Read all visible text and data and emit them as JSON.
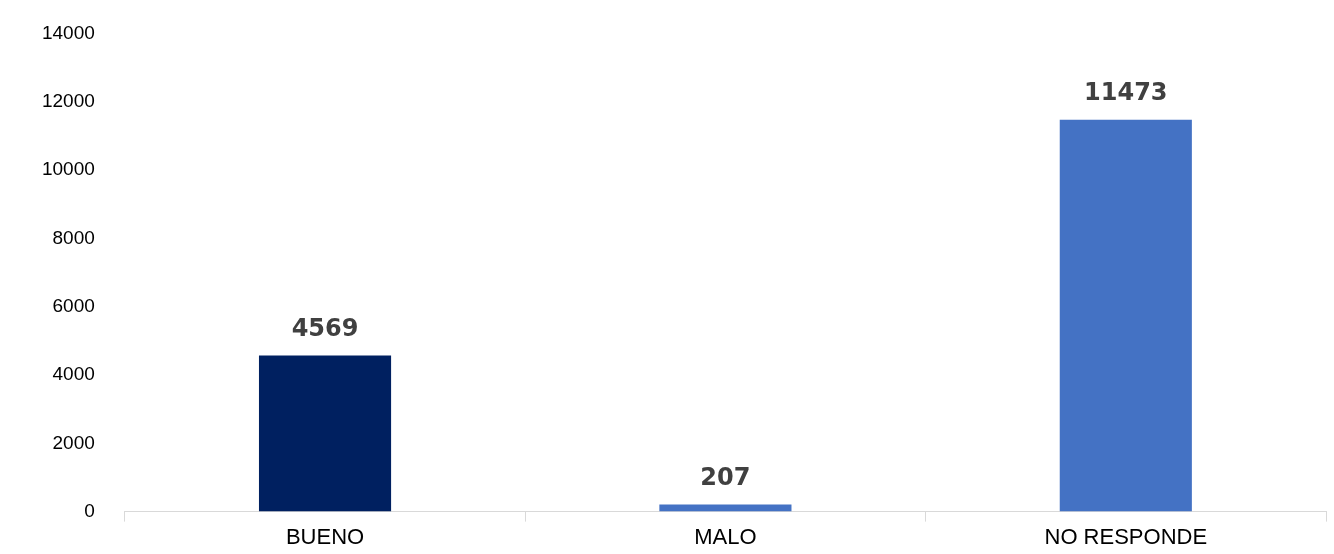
{
  "chart_data": {
    "type": "bar",
    "categories": [
      "BUENO",
      "MALO",
      "NO RESPONDE"
    ],
    "values": [
      4569,
      207,
      11473
    ],
    "colors": [
      "#002060",
      "#4472c4",
      "#4472c4"
    ],
    "ylim": [
      0,
      14000
    ],
    "yticks": [
      0,
      2000,
      4000,
      6000,
      8000,
      10000,
      12000,
      14000
    ],
    "grid": false,
    "data_labels": true
  }
}
